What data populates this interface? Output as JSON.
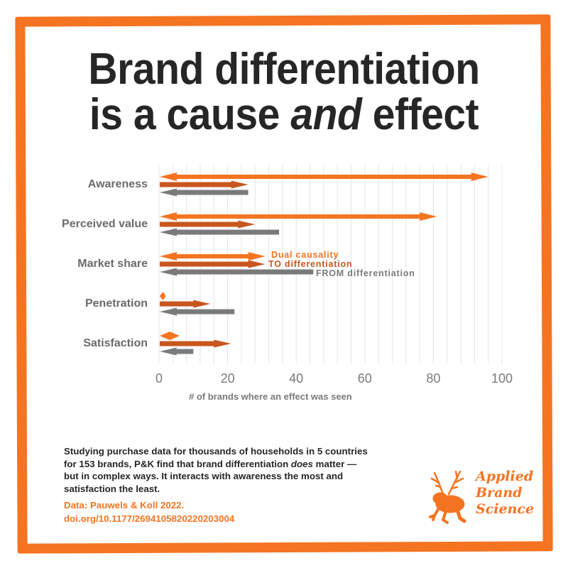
{
  "title": {
    "line1": "Brand differentiation",
    "line2_pre": "is a cause ",
    "line2_em": "and",
    "line2_post": " effect"
  },
  "colors": {
    "border": "#F47421",
    "dual": "#F47421",
    "to": "#C8561F",
    "from": "#7A7A7A",
    "grid": "#E4E4E4"
  },
  "chart_data": {
    "type": "bar",
    "orientation": "horizontal",
    "title": "Brand differentiation is a cause and effect",
    "xlabel": "# of brands where an effect was seen",
    "ylabel": "",
    "xlim": [
      0,
      100
    ],
    "x_ticks": [
      0,
      20,
      40,
      60,
      80,
      100
    ],
    "grid": true,
    "grid_step": 4,
    "categories": [
      "Awareness",
      "Perceived value",
      "Market share",
      "Penetration",
      "Satisfaction"
    ],
    "series": [
      {
        "name": "Dual causality",
        "values": [
          96,
          81,
          31,
          2,
          6
        ],
        "style": "double-arrow"
      },
      {
        "name": "TO differentiation",
        "values": [
          26,
          28,
          31,
          15,
          21
        ],
        "style": "right-arrow"
      },
      {
        "name": "FROM differentiation",
        "values": [
          26,
          35,
          45,
          22,
          10
        ],
        "style": "left-arrow"
      }
    ],
    "annotations": [
      {
        "text": "Dual causality",
        "category": "Market share",
        "series": "Dual causality"
      },
      {
        "text": "TO differentiation",
        "category": "Market share",
        "series": "TO differentiation"
      },
      {
        "text": "FROM differentiation",
        "category": "Market share",
        "series": "FROM differentiation"
      }
    ]
  },
  "annotations": {
    "dual": "Dual causality",
    "to": "TO differentiation",
    "from": "FROM differentiation"
  },
  "axis": {
    "ticks": [
      "0",
      "20",
      "40",
      "60",
      "80",
      "100"
    ],
    "title": "# of brands where an effect was seen"
  },
  "body": {
    "part1": "Studying purchase data for thousands of households in 5 countries for 153 brands, P&K find that brand differentiation ",
    "em": "does",
    "part2": " matter — but in complex ways. It interacts with awareness the most and satisfaction the least."
  },
  "source": {
    "line1": "Data: Pauwels & Koll 2022.",
    "line2": "doi.org/10.1177/2694105820220203004"
  },
  "logo": {
    "line1": "Applied",
    "line2": "Brand",
    "line3": "Science",
    "tm": "™"
  }
}
